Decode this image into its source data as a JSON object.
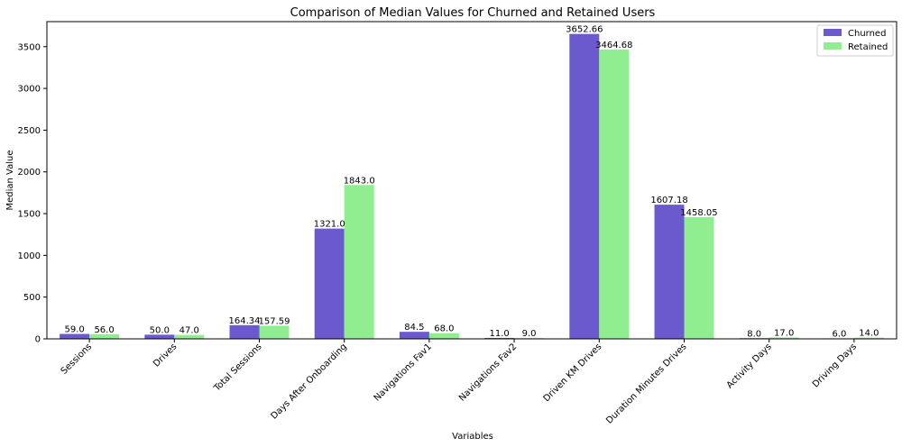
{
  "chart_data": {
    "type": "bar",
    "title": "Comparison of Median Values for Churned and Retained Users",
    "xlabel": "Variables",
    "ylabel": "Median Value",
    "ylim": [
      0,
      3800
    ],
    "yticks": [
      0,
      500,
      1000,
      1500,
      2000,
      2500,
      3000,
      3500
    ],
    "categories": [
      "Sessions",
      "Drives",
      "Total Sessions",
      "Days After Onboarding",
      "Navigations Fav1",
      "Navigations Fav2",
      "Driven KM Drives",
      "Duration Minutes Drives",
      "Activity Days",
      "Driving Days"
    ],
    "series": [
      {
        "name": "Churned",
        "color": "#6a5acd",
        "values": [
          59.0,
          50.0,
          164.34,
          1321.0,
          84.5,
          11.0,
          3652.66,
          1607.18,
          8.0,
          6.0
        ],
        "labels": [
          "59.0",
          "50.0",
          "164.34",
          "1321.0",
          "84.5",
          "11.0",
          "3652.66",
          "1607.18",
          "8.0",
          "6.0"
        ]
      },
      {
        "name": "Retained",
        "color": "#90ee90",
        "values": [
          56.0,
          47.0,
          157.59,
          1843.0,
          68.0,
          9.0,
          3464.68,
          1458.05,
          17.0,
          14.0
        ],
        "labels": [
          "56.0",
          "47.0",
          "157.59",
          "1843.0",
          "68.0",
          "9.0",
          "3464.68",
          "1458.05",
          "17.0",
          "14.0"
        ]
      }
    ],
    "legend_position": "top-right",
    "grid": false
  }
}
